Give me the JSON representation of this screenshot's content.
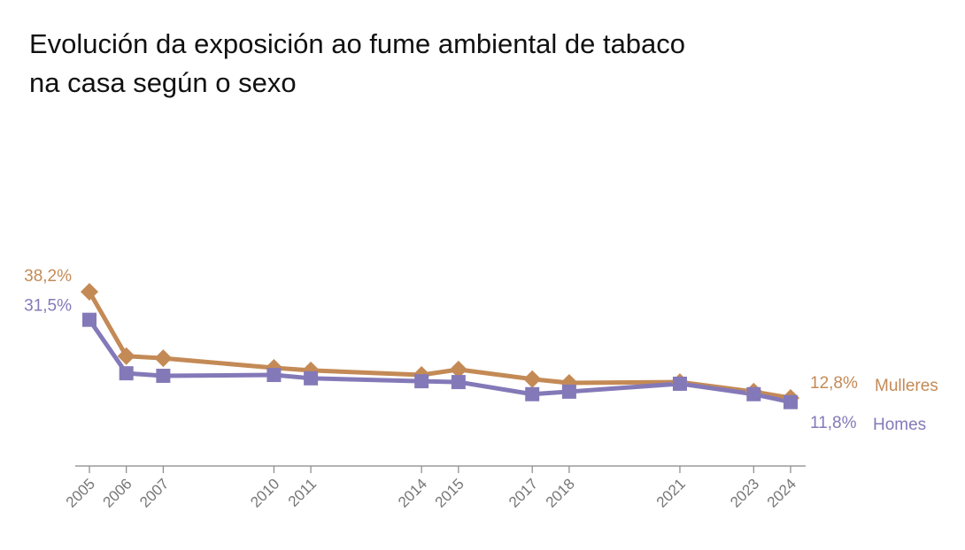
{
  "chart_data": {
    "type": "line",
    "title": [
      "Evolución da exposición ao fume ambiental de tabaco",
      "na casa según o sexo"
    ],
    "x": [
      2005,
      2006,
      2007,
      2010,
      2011,
      2014,
      2015,
      2017,
      2018,
      2021,
      2023,
      2024
    ],
    "xlim": [
      2005,
      2024
    ],
    "xticks": [
      2005,
      2006,
      2007,
      2010,
      2011,
      2014,
      2015,
      2017,
      2018,
      2021,
      2023,
      2024
    ],
    "ylim": [
      0,
      40
    ],
    "series": [
      {
        "name": "Mulleres",
        "color": "#c48a56",
        "marker": "diamond",
        "values": [
          38.2,
          22.8,
          22.3,
          20.0,
          19.4,
          18.3,
          19.6,
          17.3,
          16.4,
          16.6,
          14.3,
          12.8
        ],
        "value_labels": [
          "38,2%",
          null,
          null,
          null,
          null,
          null,
          null,
          null,
          null,
          null,
          null,
          "12,8%"
        ]
      },
      {
        "name": "Homes",
        "color": "#8479b8",
        "marker": "square",
        "values": [
          31.5,
          18.7,
          18.1,
          18.3,
          17.5,
          16.8,
          16.6,
          13.7,
          14.3,
          16.2,
          13.7,
          11.8
        ],
        "value_labels": [
          "31,5%",
          null,
          null,
          null,
          null,
          null,
          null,
          null,
          null,
          null,
          null,
          "11,8%"
        ]
      }
    ]
  }
}
